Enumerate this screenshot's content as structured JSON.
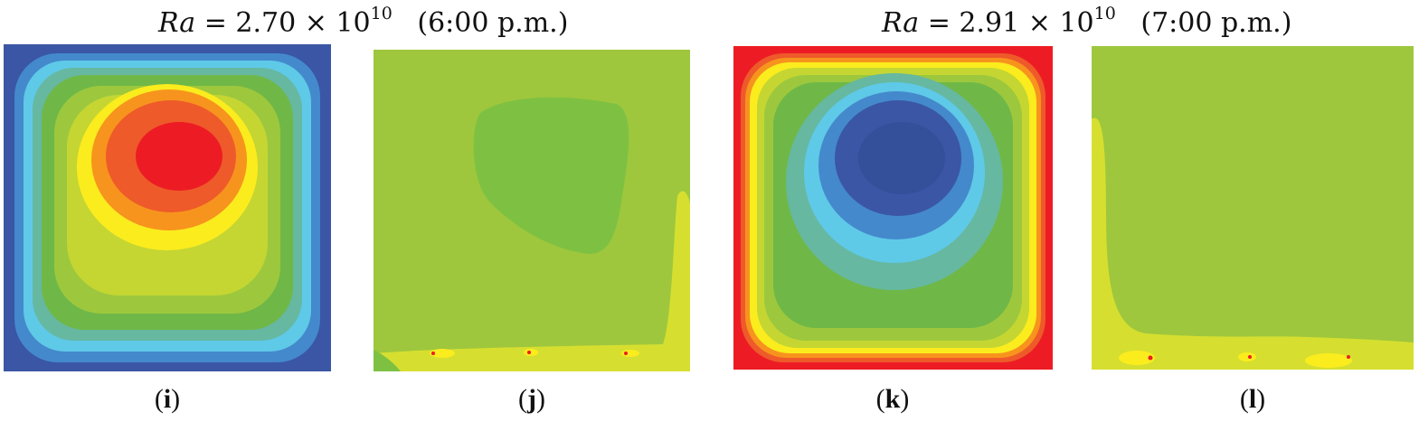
{
  "headings": [
    {
      "ra_symbol": "Ra",
      "equals": "=",
      "mantissa": "2.70",
      "times": "×",
      "base": "10",
      "exponent": "10",
      "time": "(6:00 p.m.)"
    },
    {
      "ra_symbol": "Ra",
      "equals": "=",
      "mantissa": "2.91",
      "times": "×",
      "base": "10",
      "exponent": "10",
      "time": "(7:00 p.m.)"
    }
  ],
  "panels": [
    {
      "label": "i",
      "caption_open": "(",
      "caption_close": ")"
    },
    {
      "label": "j",
      "caption_open": "(",
      "caption_close": ")"
    },
    {
      "label": "k",
      "caption_open": "(",
      "caption_close": ")"
    },
    {
      "label": "l",
      "caption_open": "(",
      "caption_close": ")"
    }
  ],
  "colors": {
    "blue": "#3a56a5",
    "mid_blue": "#4489cc",
    "cyan": "#5fc9e8",
    "teal": "#66b8a0",
    "green": "#6fb847",
    "light_green": "#9dc83d",
    "yellow_green": "#c5d632",
    "yellow": "#fbec1e",
    "orange": "#f7941d",
    "red_orange": "#ee5a2a",
    "red": "#ed1c24",
    "field_green": "#9ec73d",
    "field_dark_green": "#7ec142",
    "field_yellow": "#d6df2f"
  }
}
